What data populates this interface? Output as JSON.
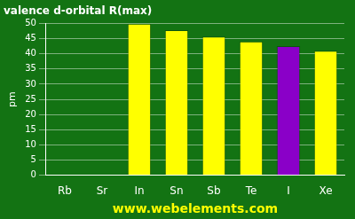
{
  "chart_data": {
    "type": "bar",
    "title": "valence d-orbital R(max)",
    "y_label": "pm",
    "x_label": "www.webelements.com",
    "categories": [
      "Rb",
      "Sr",
      "In",
      "Sn",
      "Sb",
      "Te",
      "I",
      "Xe"
    ],
    "values": [
      null,
      null,
      49.9,
      47.8,
      45.7,
      44.1,
      42.5,
      41.0
    ],
    "colors": [
      "#ffff00",
      "#ffff00",
      "#ffff00",
      "#ffff00",
      "#ffff00",
      "#ffff00",
      "#8a00c8",
      "#ffff00"
    ],
    "ylim": [
      0,
      50
    ],
    "yticks": [
      0,
      5,
      10,
      15,
      20,
      25,
      30,
      35,
      40,
      45,
      50
    ],
    "grid": true
  }
}
